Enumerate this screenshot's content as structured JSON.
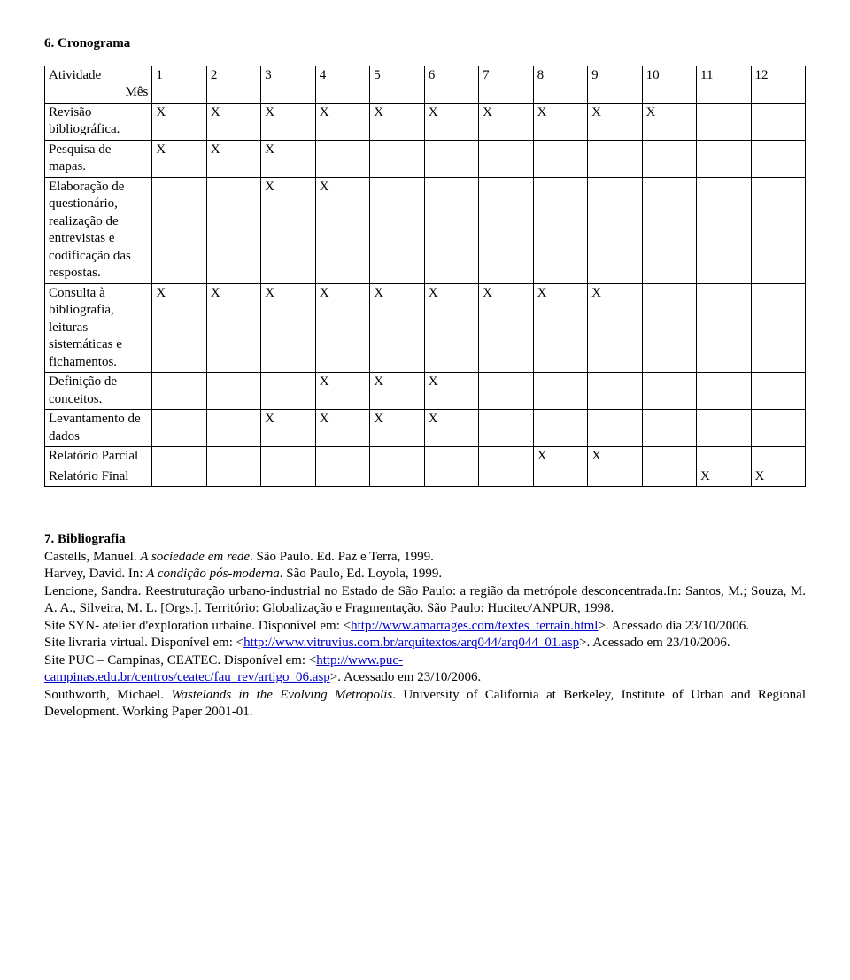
{
  "section_cronograma_title": "6. Cronograma",
  "table": {
    "header_activity": "Atividade",
    "header_activity_sub": "Mês",
    "months": [
      "1",
      "2",
      "3",
      "4",
      "5",
      "6",
      "7",
      "8",
      "9",
      "10",
      "11",
      "12"
    ],
    "rows": [
      {
        "label": "Revisão bibliográfica.",
        "marks": [
          "X",
          "X",
          "X",
          "X",
          "X",
          "X",
          "X",
          "X",
          "X",
          "X",
          "",
          ""
        ]
      },
      {
        "label": "Pesquisa de mapas.",
        "marks": [
          "X",
          "X",
          "X",
          "",
          "",
          "",
          "",
          "",
          "",
          "",
          "",
          ""
        ]
      },
      {
        "label": "Elaboração de questionário, realização de entrevistas e codificação das respostas.",
        "marks": [
          "",
          "",
          "X",
          "X",
          "",
          "",
          "",
          "",
          "",
          "",
          "",
          ""
        ]
      },
      {
        "label": "Consulta à bibliografia, leituras sistemáticas e fichamentos.",
        "marks": [
          "X",
          "X",
          "X",
          "X",
          "X",
          "X",
          "X",
          "X",
          "X",
          "",
          "",
          ""
        ]
      },
      {
        "label": "Definição de conceitos.",
        "marks": [
          "",
          "",
          "",
          "X",
          "X",
          "X",
          "",
          "",
          "",
          "",
          "",
          ""
        ]
      },
      {
        "label": "Levantamento de dados",
        "marks": [
          "",
          "",
          "X",
          "X",
          "X",
          "X",
          "",
          "",
          "",
          "",
          "",
          ""
        ]
      },
      {
        "label": "Relatório Parcial",
        "marks": [
          "",
          "",
          "",
          "",
          "",
          "",
          "",
          "X",
          "X",
          "",
          "",
          ""
        ]
      },
      {
        "label": "Relatório Final",
        "marks": [
          "",
          "",
          "",
          "",
          "",
          "",
          "",
          "",
          "",
          "",
          "X",
          "X"
        ]
      }
    ]
  },
  "section_biblio_title": "7. Bibliografia",
  "bib": {
    "l1a": "Castells, Manuel. ",
    "l1b": "A sociedade em rede",
    "l1c": ". São Paulo. Ed. Paz e Terra, 1999.",
    "l2a": "Harvey, David. In: ",
    "l2b": "A condição pós-moderna",
    "l2c": ". São Paulo, Ed. Loyola, 1999.",
    "l3": "Lencione, Sandra. Reestruturação urbano-industrial no Estado de São Paulo: a região da metrópole desconcentrada.In: Santos, M.; Souza, M. A. A., Silveira, M. L. [Orgs.]. Território: Globalização e Fragmentação. São Paulo: Hucitec/ANPUR, 1998.",
    "l4a": "Site SYN- atelier d'exploration urbaine. Disponível em: <",
    "l4link": "http://www.amarrages.com/textes_terrain.html",
    "l4b": ">. Acessado dia 23/10/2006.",
    "l5a": "Site livraria virtual. Disponível em: <",
    "l5link": "http://www.vitruvius.com.br/arquitextos/arq044/arq044_01.asp",
    "l5b": ">. Acessado em 23/10/2006.",
    "l6a": "Site PUC – Campinas, CEATEC. Disponível em: <",
    "l6link": "http://www.puc-campinas.edu.br/centros/ceatec/fau_rev/artigo_06.asp",
    "l6linkpart1": "http://www.puc-",
    "l6linkpart2": "campinas.edu.br/centros/ceatec/fau_rev/artigo_06.asp",
    "l6b": ">. Acessado em 23/10/2006.",
    "l7a": "Southworth, Michael. ",
    "l7b": "Wastelands in the Evolving Metropolis",
    "l7c": ". University of California at Berkeley, Institute of Urban and Regional Development. Working Paper 2001-01."
  }
}
